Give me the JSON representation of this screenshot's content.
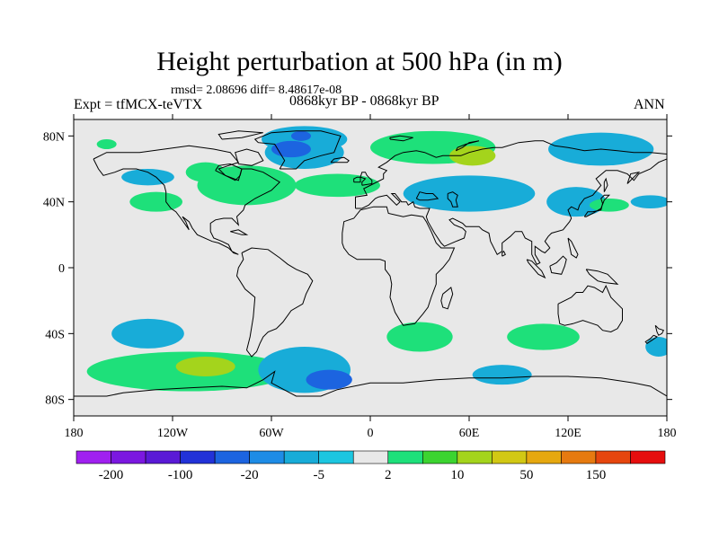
{
  "title": "Height perturbation at 500 hPa (in m)",
  "stats_text": "rmsd= 2.08696 diff= 8.48617e-08",
  "left_label": "Expt = tfMCX-teVTX",
  "center_label": "0868kyr BP - 0868kyr BP",
  "right_label": "ANN",
  "lat_ticks": [
    {
      "value": 80,
      "label": "80N"
    },
    {
      "value": 40,
      "label": "40N"
    },
    {
      "value": 0,
      "label": "0"
    },
    {
      "value": -40,
      "label": "40S"
    },
    {
      "value": -80,
      "label": "80S"
    }
  ],
  "lon_ticks": [
    {
      "value": -180,
      "label": "180"
    },
    {
      "value": -120,
      "label": "120W"
    },
    {
      "value": -60,
      "label": "60W"
    },
    {
      "value": 0,
      "label": "0"
    },
    {
      "value": 60,
      "label": "60E"
    },
    {
      "value": 120,
      "label": "120E"
    },
    {
      "value": 180,
      "label": "180"
    }
  ],
  "extent": {
    "lon": [
      -180,
      180
    ],
    "lat": [
      -90,
      90
    ]
  },
  "colorbar": {
    "colors": [
      "#a020f0",
      "#7b18e0",
      "#5a1ad6",
      "#2232d8",
      "#1c64e0",
      "#1e8ce6",
      "#18acd8",
      "#1cc6e0",
      "#e8e8e8",
      "#1ee07a",
      "#3cd430",
      "#a4d41c",
      "#d2c814",
      "#e6a810",
      "#e67a10",
      "#e6460e",
      "#e60e0e"
    ],
    "labels": [
      {
        "label": "-200",
        "after_box": 1
      },
      {
        "label": "-100",
        "after_box": 3
      },
      {
        "label": "-20",
        "after_box": 5
      },
      {
        "label": "-5",
        "after_box": 7
      },
      {
        "label": "2",
        "after_box": 9
      },
      {
        "label": "10",
        "after_box": 11
      },
      {
        "label": "50",
        "after_box": 13
      },
      {
        "label": "150",
        "after_box": 15
      }
    ]
  },
  "background_color": "#e8e8e8",
  "anomalies": [
    {
      "lon": -40,
      "lat": 78,
      "rlon": 26,
      "rlat": 8,
      "level": -5
    },
    {
      "lon": -40,
      "lat": 70,
      "rlon": 24,
      "rlat": 10,
      "level": -5
    },
    {
      "lon": -48,
      "lat": 72,
      "rlon": 12,
      "rlat": 5,
      "level": -20
    },
    {
      "lon": -42,
      "lat": 80,
      "rlon": 6,
      "rlat": 3,
      "level": -20
    },
    {
      "lon": 38,
      "lat": 73,
      "rlon": 38,
      "rlat": 10,
      "level": 2
    },
    {
      "lon": 62,
      "lat": 68,
      "rlon": 14,
      "rlat": 6,
      "level": 10
    },
    {
      "lon": -75,
      "lat": 50,
      "rlon": 30,
      "rlat": 12,
      "level": 2
    },
    {
      "lon": -20,
      "lat": 50,
      "rlon": 26,
      "rlat": 7,
      "level": 2
    },
    {
      "lon": -100,
      "lat": 58,
      "rlon": 12,
      "rlat": 6,
      "level": 2
    },
    {
      "lon": -130,
      "lat": 40,
      "rlon": 16,
      "rlat": 6,
      "level": 2
    },
    {
      "lon": 60,
      "lat": 45,
      "rlon": 40,
      "rlat": 11,
      "level": -5
    },
    {
      "lon": 140,
      "lat": 72,
      "rlon": 32,
      "rlat": 10,
      "level": -5
    },
    {
      "lon": -135,
      "lat": 55,
      "rlon": 16,
      "rlat": 5,
      "level": -5
    },
    {
      "lon": 125,
      "lat": 40,
      "rlon": 18,
      "rlat": 9,
      "level": -5
    },
    {
      "lon": 145,
      "lat": 38,
      "rlon": 12,
      "rlat": 4,
      "level": 2
    },
    {
      "lon": 170,
      "lat": 40,
      "rlon": 12,
      "rlat": 4,
      "level": -5
    },
    {
      "lon": -160,
      "lat": 75,
      "rlon": 6,
      "rlat": 3,
      "level": 2
    },
    {
      "lon": -135,
      "lat": -40,
      "rlon": 22,
      "rlat": 9,
      "level": -5
    },
    {
      "lon": -110,
      "lat": -63,
      "rlon": 62,
      "rlat": 12,
      "level": 2
    },
    {
      "lon": -100,
      "lat": -60,
      "rlon": 18,
      "rlat": 6,
      "level": 10
    },
    {
      "lon": -40,
      "lat": -62,
      "rlon": 28,
      "rlat": 14,
      "level": -5
    },
    {
      "lon": -25,
      "lat": -68,
      "rlon": 14,
      "rlat": 6,
      "level": -20
    },
    {
      "lon": 30,
      "lat": -42,
      "rlon": 20,
      "rlat": 9,
      "level": 2
    },
    {
      "lon": 105,
      "lat": -42,
      "rlon": 22,
      "rlat": 8,
      "level": 2
    },
    {
      "lon": 80,
      "lat": -65,
      "rlon": 18,
      "rlat": 6,
      "level": -5
    },
    {
      "lon": 175,
      "lat": -48,
      "rlon": 8,
      "rlat": 6,
      "level": -5
    }
  ]
}
